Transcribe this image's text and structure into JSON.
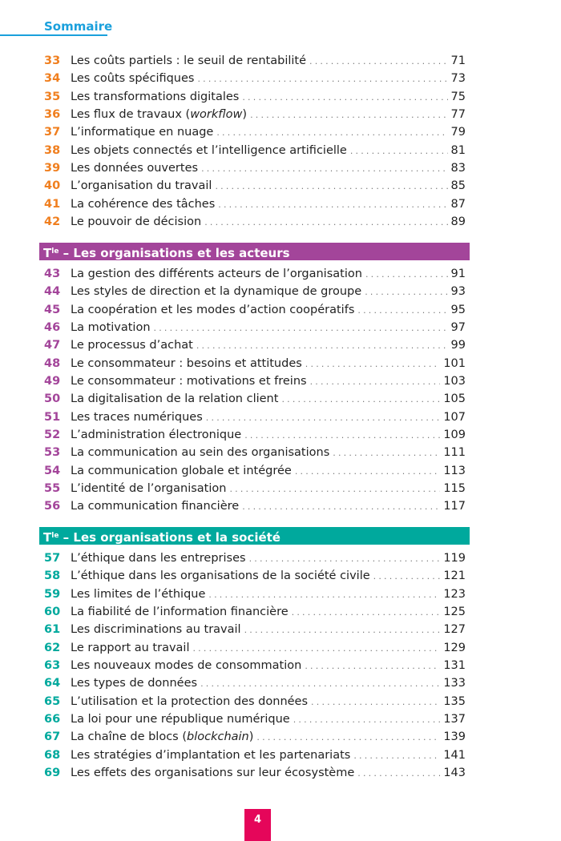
{
  "header": {
    "title": "Sommaire",
    "color": "#1aa0dc"
  },
  "colors": {
    "group1": "#f07f1f",
    "group2": "#a3459a",
    "group3": "#00a99d",
    "page_box": "#e5065a"
  },
  "group1": [
    {
      "num": "33",
      "title": "Les coûts partiels : le seuil de rentabilité",
      "page": "71"
    },
    {
      "num": "34",
      "title": "Les coûts spécifiques",
      "page": "73"
    },
    {
      "num": "35",
      "title": "Les transformations digitales",
      "page": "75"
    },
    {
      "num": "36",
      "title": "Les flux de travaux (",
      "title_italic": "workflow",
      "title_end": ")",
      "page": "77"
    },
    {
      "num": "37",
      "title": "L’informatique en nuage",
      "page": "79"
    },
    {
      "num": "38",
      "title": "Les objets connectés et l’intelligence artificielle",
      "page": "81"
    },
    {
      "num": "39",
      "title": "Les données ouvertes",
      "page": "83"
    },
    {
      "num": "40",
      "title": "L’organisation du travail",
      "page": "85"
    },
    {
      "num": "41",
      "title": "La cohérence des tâches",
      "page": "87"
    },
    {
      "num": "42",
      "title": "Le pouvoir de décision",
      "page": "89"
    }
  ],
  "section2": {
    "prefix": "T",
    "sup": "le",
    "title": " – Les organisations et les acteurs"
  },
  "group2": [
    {
      "num": "43",
      "title": "La gestion des différents acteurs de l’organisation",
      "page": "91"
    },
    {
      "num": "44",
      "title": "Les styles de direction et la dynamique de groupe",
      "page": "93"
    },
    {
      "num": "45",
      "title": "La coopération et les modes d’action coopératifs",
      "page": "95"
    },
    {
      "num": "46",
      "title": "La motivation",
      "page": "97"
    },
    {
      "num": "47",
      "title": "Le processus d’achat",
      "page": "99"
    },
    {
      "num": "48",
      "title": "Le consommateur : besoins et attitudes",
      "page": "101"
    },
    {
      "num": "49",
      "title": "Le consommateur : motivations et freins",
      "page": "103"
    },
    {
      "num": "50",
      "title": "La digitalisation de la relation client",
      "page": "105"
    },
    {
      "num": "51",
      "title": "Les traces numériques",
      "page": "107"
    },
    {
      "num": "52",
      "title": "L’administration électronique",
      "page": "109"
    },
    {
      "num": "53",
      "title": "La communication au sein des organisations",
      "page": "111"
    },
    {
      "num": "54",
      "title": "La communication globale et intégrée",
      "page": "113"
    },
    {
      "num": "55",
      "title": "L’identité de l’organisation",
      "page": "115"
    },
    {
      "num": "56",
      "title": "La communication financière",
      "page": "117"
    }
  ],
  "section3": {
    "prefix": "T",
    "sup": "le",
    "title": " – Les organisations et la société"
  },
  "group3": [
    {
      "num": "57",
      "title": "L’éthique dans les entreprises",
      "page": "119"
    },
    {
      "num": "58",
      "title": "L’éthique dans les organisations de la société civile",
      "page": "121"
    },
    {
      "num": "59",
      "title": "Les limites de l’éthique",
      "page": "123"
    },
    {
      "num": "60",
      "title": "La fiabilité de l’information financière",
      "page": "125"
    },
    {
      "num": "61",
      "title": "Les discriminations au travail",
      "page": "127"
    },
    {
      "num": "62",
      "title": "Le rapport au travail",
      "page": "129"
    },
    {
      "num": "63",
      "title": "Les nouveaux modes de consommation",
      "page": "131"
    },
    {
      "num": "64",
      "title": "Les types de données",
      "page": "133"
    },
    {
      "num": "65",
      "title": "L’utilisation et la protection des données",
      "page": "135"
    },
    {
      "num": "66",
      "title": "La loi pour une république numérique",
      "page": "137"
    },
    {
      "num": "67",
      "title": "La chaîne de blocs (",
      "title_italic": "blockchain",
      "title_end": ")",
      "page": "139"
    },
    {
      "num": "68",
      "title": "Les stratégies d’implantation et les partenariats",
      "page": "141"
    },
    {
      "num": "69",
      "title": "Les effets des organisations sur leur écosystème",
      "page": "143"
    }
  ],
  "footer": {
    "page_number": "4"
  }
}
